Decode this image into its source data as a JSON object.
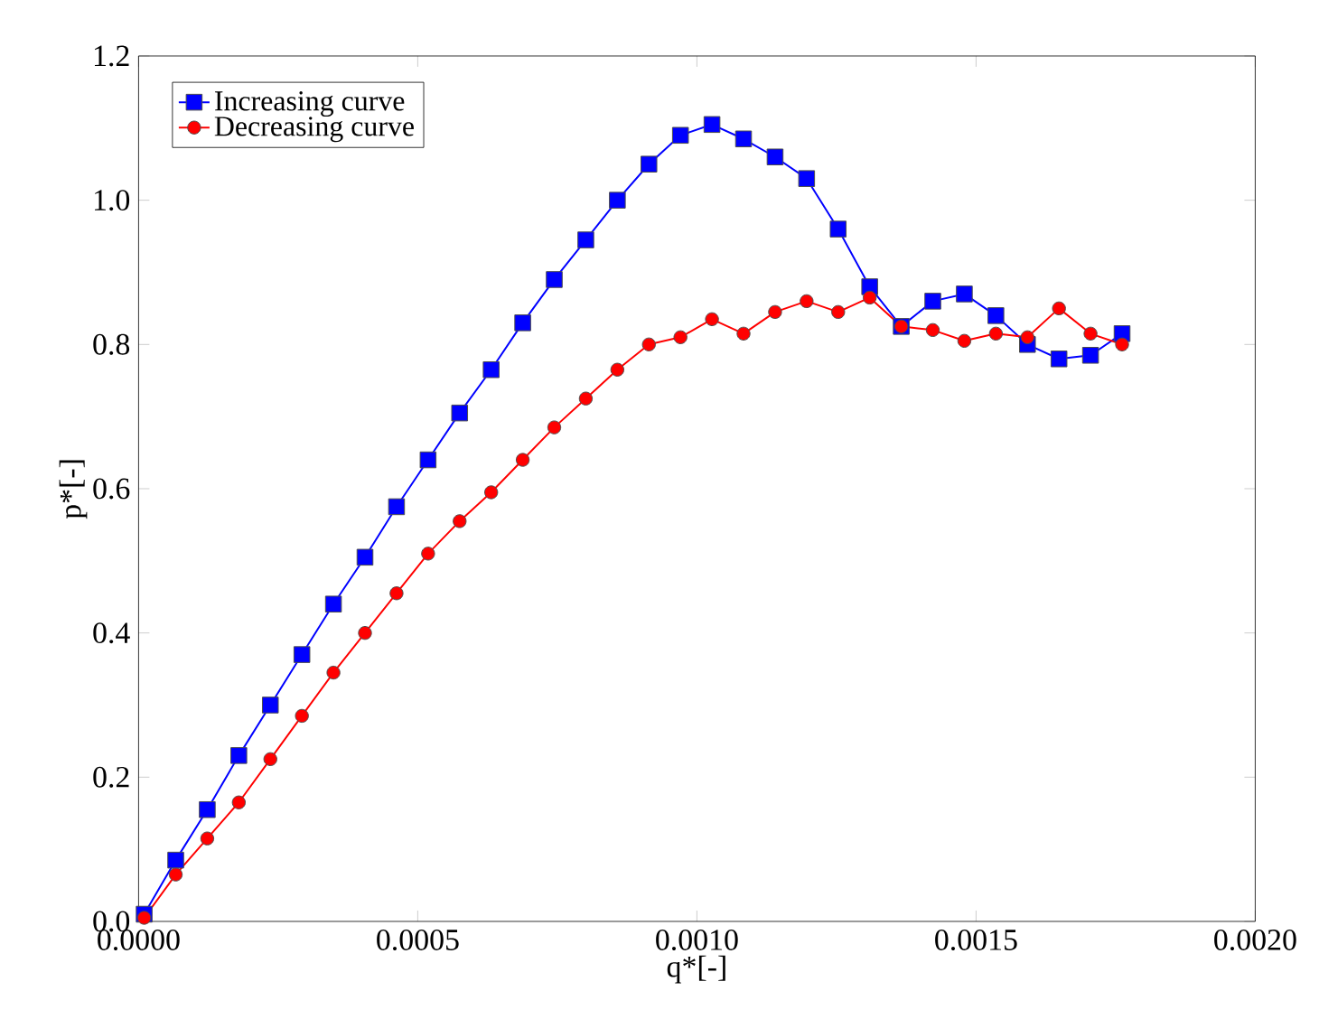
{
  "chart_data": {
    "type": "line",
    "xlabel": "q*[-]",
    "ylabel": "p*[-]",
    "x": [
      1e-05,
      6.65e-05,
      0.000123,
      0.0001795,
      0.000236,
      0.0002925,
      0.000349,
      0.0004055,
      0.000462,
      0.0005185,
      0.000575,
      0.0006315,
      0.000688,
      0.0007445,
      0.000801,
      0.0008575,
      0.000914,
      0.0009705,
      0.001027,
      0.0010835,
      0.00114,
      0.0011965,
      0.001253,
      0.0013095,
      0.001366,
      0.0014225,
      0.001479,
      0.0015355,
      0.001592,
      0.0016485,
      0.001705,
      0.0017615
    ],
    "series": [
      {
        "name": "Increasing curve",
        "color": "#0000ff",
        "marker": "square",
        "values": [
          0.01,
          0.085,
          0.155,
          0.23,
          0.3,
          0.37,
          0.44,
          0.505,
          0.575,
          0.64,
          0.705,
          0.765,
          0.83,
          0.89,
          0.945,
          1.0,
          1.05,
          1.09,
          1.105,
          1.085,
          1.06,
          1.03,
          0.96,
          0.88,
          0.825,
          0.86,
          0.87,
          0.84,
          0.8,
          0.78,
          0.785,
          0.815
        ]
      },
      {
        "name": "Decreasing curve",
        "color": "#ff0000",
        "marker": "circle",
        "values": [
          0.005,
          0.065,
          0.115,
          0.165,
          0.225,
          0.285,
          0.345,
          0.4,
          0.455,
          0.51,
          0.555,
          0.595,
          0.64,
          0.685,
          0.725,
          0.765,
          0.8,
          0.81,
          0.835,
          0.815,
          0.845,
          0.86,
          0.845,
          0.865,
          0.825,
          0.82,
          0.805,
          0.815,
          0.81,
          0.85,
          0.815,
          0.8
        ]
      }
    ],
    "xlim": [
      0,
      0.002
    ],
    "ylim": [
      0,
      1.2
    ],
    "xticks": [
      {
        "value": 0,
        "label": "0.0000"
      },
      {
        "value": 0.0005,
        "label": "0.0005"
      },
      {
        "value": 0.001,
        "label": "0.0010"
      },
      {
        "value": 0.0015,
        "label": "0.0015"
      },
      {
        "value": 0.002,
        "label": "0.0020"
      }
    ],
    "yticks": [
      {
        "value": 0,
        "label": "0.0"
      },
      {
        "value": 0.2,
        "label": "0.2"
      },
      {
        "value": 0.4,
        "label": "0.4"
      },
      {
        "value": 0.6,
        "label": "0.6"
      },
      {
        "value": 0.8,
        "label": "0.8"
      },
      {
        "value": 1.0,
        "label": "1.0"
      },
      {
        "value": 1.2,
        "label": "1.2"
      }
    ],
    "grid": false,
    "legend": "top left",
    "line_style": "solid"
  }
}
